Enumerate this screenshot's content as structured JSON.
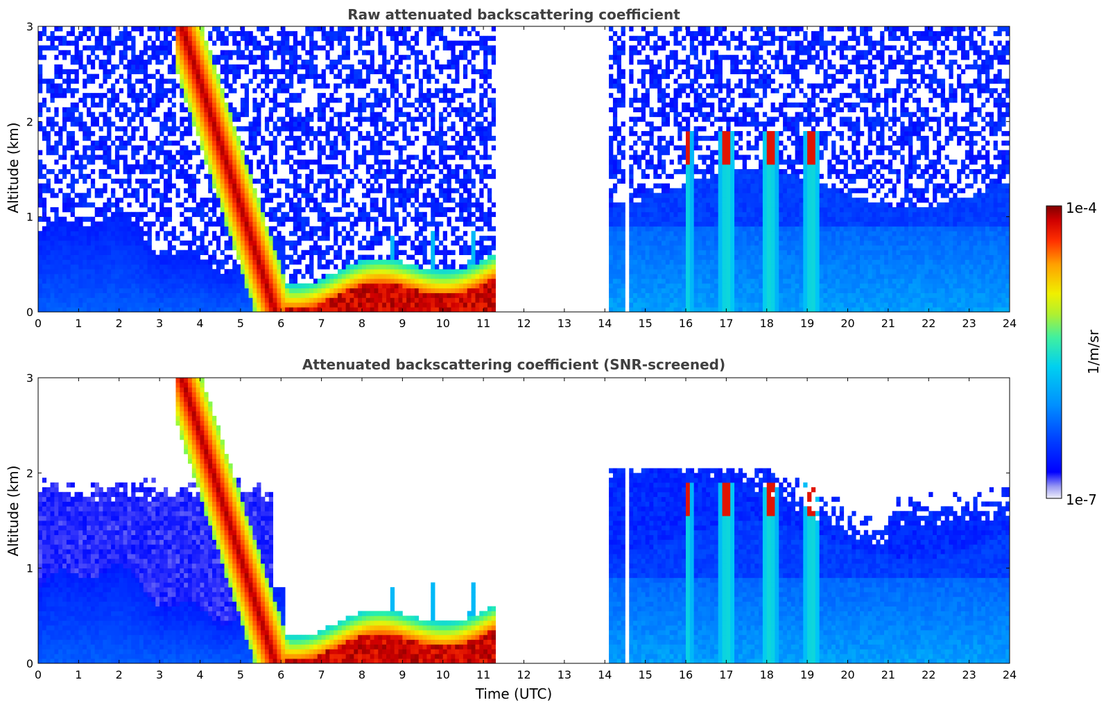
{
  "chart_data": [
    {
      "type": "heatmap",
      "title": "Raw attenuated backscattering coefficient",
      "ylabel": "Altitude (km)",
      "xlabel": "",
      "xlim": [
        0,
        24
      ],
      "ylim": [
        0,
        3
      ],
      "x_ticks": [
        "0",
        "1",
        "2",
        "3",
        "4",
        "5",
        "6",
        "7",
        "8",
        "9",
        "10",
        "11",
        "12",
        "13",
        "14",
        "15",
        "16",
        "17",
        "18",
        "19",
        "20",
        "21",
        "22",
        "23",
        "24"
      ],
      "y_ticks": [
        "0",
        "1",
        "2",
        "3"
      ],
      "data_gap_utc": [
        11.3,
        14.1
      ],
      "screened": false
    },
    {
      "type": "heatmap",
      "title": "Attenuated backscattering coefficient (SNR-screened)",
      "ylabel": "Altitude (km)",
      "xlabel": "Time (UTC)",
      "xlim": [
        0,
        24
      ],
      "ylim": [
        0,
        3
      ],
      "x_ticks": [
        "0",
        "1",
        "2",
        "3",
        "4",
        "5",
        "6",
        "7",
        "8",
        "9",
        "10",
        "11",
        "12",
        "13",
        "14",
        "15",
        "16",
        "17",
        "18",
        "19",
        "20",
        "21",
        "22",
        "23",
        "24"
      ],
      "y_ticks": [
        "0",
        "1",
        "2",
        "3"
      ],
      "data_gap_utc": [
        11.3,
        14.1
      ],
      "screened": true
    }
  ],
  "colorbar": {
    "label": "1/m/sr",
    "max_label": "1e-4",
    "min_label": "1e-7",
    "scale": "log",
    "colormap": "jet",
    "colors": [
      "#e6e6f8",
      "#8080f0",
      "#0000ff",
      "#0040ff",
      "#0080ff",
      "#00c0ff",
      "#00e0e0",
      "#40f0a0",
      "#a0f040",
      "#f0f000",
      "#ffa000",
      "#ff4000",
      "#e00000",
      "#800000"
    ]
  }
}
